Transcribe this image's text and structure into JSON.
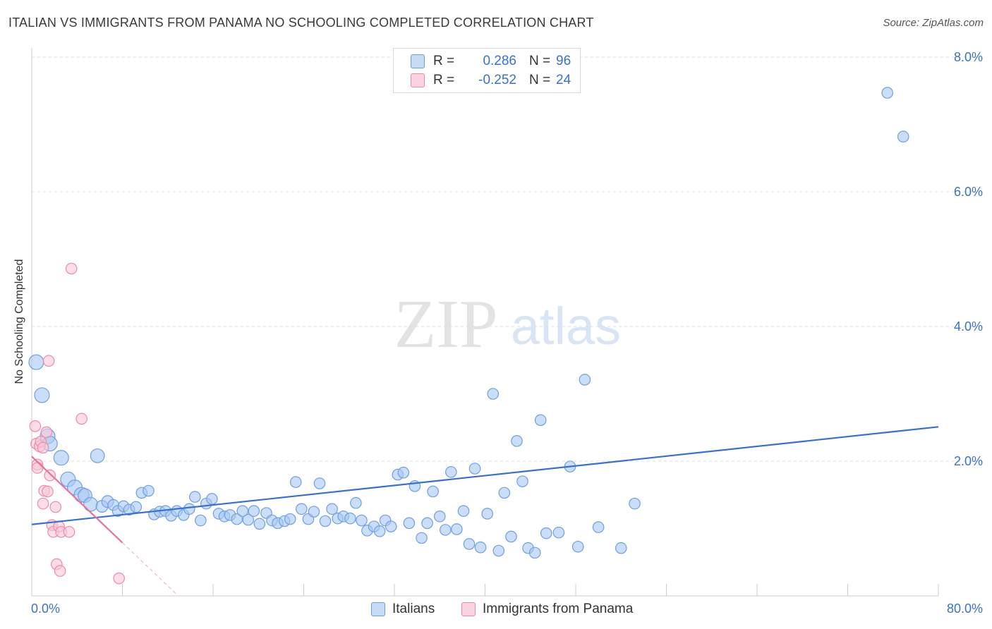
{
  "title": "ITALIAN VS IMMIGRANTS FROM PANAMA NO SCHOOLING COMPLETED CORRELATION CHART",
  "source": "Source: ZipAtlas.com",
  "watermark": {
    "zip": "ZIP",
    "atlas": "atlas"
  },
  "legend": {
    "rows": [
      {
        "r_label": "R =",
        "r_value": "0.286",
        "n_label": "N =",
        "n_value": "96",
        "color": "#a9c8f2",
        "border": "#6f9fe0"
      },
      {
        "r_label": "R =",
        "r_value": "-0.252",
        "n_label": "N =",
        "n_value": "24",
        "color": "#f9c0d0",
        "border": "#ee8aa8"
      }
    ]
  },
  "bottom_legend": [
    "Italians",
    "Immigrants from Panama"
  ],
  "colors": {
    "blue_fill": "#a9c8f2",
    "blue_stroke": "#6f9fe0",
    "blue_line": "#3a72c8",
    "pink_fill": "#f9c8d6",
    "pink_stroke": "#ee8aa8",
    "pink_line": "#e8739a",
    "tick_text": "#3a72c8",
    "grid": "#dddddd"
  },
  "chart_data": {
    "type": "scatter",
    "title": "ITALIAN VS IMMIGRANTS FROM PANAMA NO SCHOOLING COMPLETED CORRELATION CHART",
    "xlabel": "",
    "ylabel": "No Schooling Completed",
    "xlim": [
      0,
      80
    ],
    "ylim": [
      0,
      8.0
    ],
    "x_tick_labels": [
      "0.0%",
      "80.0%"
    ],
    "y_ticks": [
      2.0,
      4.0,
      6.0,
      8.0
    ],
    "y_tick_labels": [
      "2.0%",
      "4.0%",
      "6.0%",
      "8.0%"
    ],
    "grid": "horizontal dashed",
    "legend_position": "top-center",
    "series": [
      {
        "name": "Italians",
        "r": 0.286,
        "n": 96,
        "trend": {
          "x": [
            0,
            80
          ],
          "y": [
            1.06,
            2.51
          ]
        },
        "points": [
          [
            0.4,
            3.47,
            13
          ],
          [
            0.9,
            2.98,
            13
          ],
          [
            1.4,
            2.37,
            13
          ],
          [
            1.6,
            2.26,
            13
          ],
          [
            2.6,
            2.05,
            13
          ],
          [
            3.2,
            1.73,
            13
          ],
          [
            3.8,
            1.61,
            13
          ],
          [
            4.4,
            1.5,
            13
          ],
          [
            4.7,
            1.49,
            12
          ],
          [
            5.2,
            1.36,
            12
          ],
          [
            5.8,
            2.08,
            12
          ],
          [
            6.2,
            1.33,
            10
          ],
          [
            6.7,
            1.4,
            10
          ],
          [
            7.2,
            1.35,
            9
          ],
          [
            7.6,
            1.26,
            9
          ],
          [
            8.1,
            1.33,
            9
          ],
          [
            8.6,
            1.28,
            9
          ],
          [
            9.2,
            1.32,
            9
          ],
          [
            9.7,
            1.53,
            9
          ],
          [
            10.3,
            1.56,
            9
          ],
          [
            10.8,
            1.21,
            9
          ],
          [
            11.3,
            1.25,
            9
          ],
          [
            11.8,
            1.26,
            9
          ],
          [
            12.3,
            1.19,
            9
          ],
          [
            12.8,
            1.26,
            9
          ],
          [
            13.4,
            1.2,
            9
          ],
          [
            13.9,
            1.29,
            9
          ],
          [
            14.4,
            1.47,
            9
          ],
          [
            14.9,
            1.12,
            9
          ],
          [
            15.4,
            1.37,
            9
          ],
          [
            15.9,
            1.44,
            9
          ],
          [
            16.5,
            1.22,
            9
          ],
          [
            17.0,
            1.18,
            9
          ],
          [
            17.5,
            1.2,
            9
          ],
          [
            18.1,
            1.14,
            9
          ],
          [
            18.6,
            1.26,
            9
          ],
          [
            19.1,
            1.13,
            9
          ],
          [
            19.6,
            1.26,
            9
          ],
          [
            20.1,
            1.07,
            9
          ],
          [
            20.7,
            1.23,
            9
          ],
          [
            21.2,
            1.12,
            9
          ],
          [
            21.7,
            1.08,
            9
          ],
          [
            22.3,
            1.11,
            9
          ],
          [
            22.8,
            1.14,
            9
          ],
          [
            23.3,
            1.69,
            9
          ],
          [
            23.8,
            1.29,
            9
          ],
          [
            24.4,
            1.14,
            9
          ],
          [
            24.9,
            1.25,
            9
          ],
          [
            25.4,
            1.67,
            9
          ],
          [
            25.9,
            1.11,
            9
          ],
          [
            26.5,
            1.29,
            9
          ],
          [
            27.0,
            1.15,
            9
          ],
          [
            27.5,
            1.18,
            9
          ],
          [
            28.1,
            1.15,
            9
          ],
          [
            28.6,
            1.38,
            9
          ],
          [
            29.1,
            1.12,
            9
          ],
          [
            29.6,
            0.97,
            9
          ],
          [
            30.2,
            1.03,
            9
          ],
          [
            30.7,
            0.96,
            9
          ],
          [
            31.2,
            1.12,
            9
          ],
          [
            31.7,
            1.03,
            9
          ],
          [
            32.3,
            1.8,
            9
          ],
          [
            32.8,
            1.83,
            9
          ],
          [
            33.3,
            1.08,
            9
          ],
          [
            33.8,
            1.63,
            9
          ],
          [
            34.4,
            0.86,
            9
          ],
          [
            34.9,
            1.08,
            9
          ],
          [
            35.4,
            1.55,
            9
          ],
          [
            36.0,
            1.18,
            9
          ],
          [
            36.5,
            0.98,
            9
          ],
          [
            37.0,
            1.84,
            9
          ],
          [
            37.5,
            0.99,
            9
          ],
          [
            38.1,
            1.26,
            9
          ],
          [
            38.6,
            0.77,
            9
          ],
          [
            39.1,
            1.89,
            9
          ],
          [
            39.6,
            0.72,
            9
          ],
          [
            40.2,
            1.22,
            9
          ],
          [
            40.7,
            3.0,
            9
          ],
          [
            41.2,
            0.67,
            9
          ],
          [
            41.7,
            1.53,
            9
          ],
          [
            42.3,
            0.88,
            9
          ],
          [
            42.8,
            2.3,
            9
          ],
          [
            43.3,
            1.7,
            9
          ],
          [
            43.8,
            0.71,
            9
          ],
          [
            44.4,
            0.64,
            9
          ],
          [
            44.9,
            2.61,
            9
          ],
          [
            45.4,
            0.93,
            9
          ],
          [
            46.5,
            0.94,
            9
          ],
          [
            47.5,
            1.92,
            9
          ],
          [
            48.2,
            0.73,
            9
          ],
          [
            48.8,
            3.21,
            9
          ],
          [
            50.0,
            1.02,
            9
          ],
          [
            52.0,
            0.71,
            9
          ],
          [
            53.2,
            1.37,
            9
          ],
          [
            75.5,
            7.47,
            9
          ],
          [
            76.9,
            6.82,
            9
          ]
        ]
      },
      {
        "name": "Immigrants from Panama",
        "r": -0.252,
        "n": 24,
        "trend": {
          "x": [
            0,
            8.0
          ],
          "y": [
            2.07,
            0.79
          ]
        },
        "trend_extension": {
          "x": [
            8.0,
            12.8
          ],
          "y": [
            0.79,
            0.02
          ]
        },
        "points": [
          [
            0.3,
            2.52,
            9
          ],
          [
            0.4,
            2.26,
            9
          ],
          [
            0.5,
            1.95,
            9
          ],
          [
            0.5,
            1.9,
            9
          ],
          [
            0.7,
            2.22,
            9
          ],
          [
            0.8,
            2.29,
            9
          ],
          [
            1.0,
            2.2,
            9
          ],
          [
            1.0,
            1.37,
            9
          ],
          [
            1.1,
            1.56,
            9
          ],
          [
            1.3,
            2.43,
            9
          ],
          [
            1.4,
            1.55,
            9
          ],
          [
            1.5,
            3.49,
            9
          ],
          [
            1.6,
            1.79,
            9
          ],
          [
            1.8,
            1.05,
            9
          ],
          [
            1.9,
            0.95,
            9
          ],
          [
            2.1,
            1.32,
            9
          ],
          [
            2.2,
            0.47,
            9
          ],
          [
            2.4,
            1.03,
            9
          ],
          [
            2.5,
            0.37,
            9
          ],
          [
            2.6,
            0.95,
            9
          ],
          [
            3.3,
            0.95,
            9
          ],
          [
            3.5,
            4.86,
            9
          ],
          [
            4.4,
            2.63,
            9
          ],
          [
            7.7,
            0.26,
            9
          ]
        ]
      }
    ]
  }
}
